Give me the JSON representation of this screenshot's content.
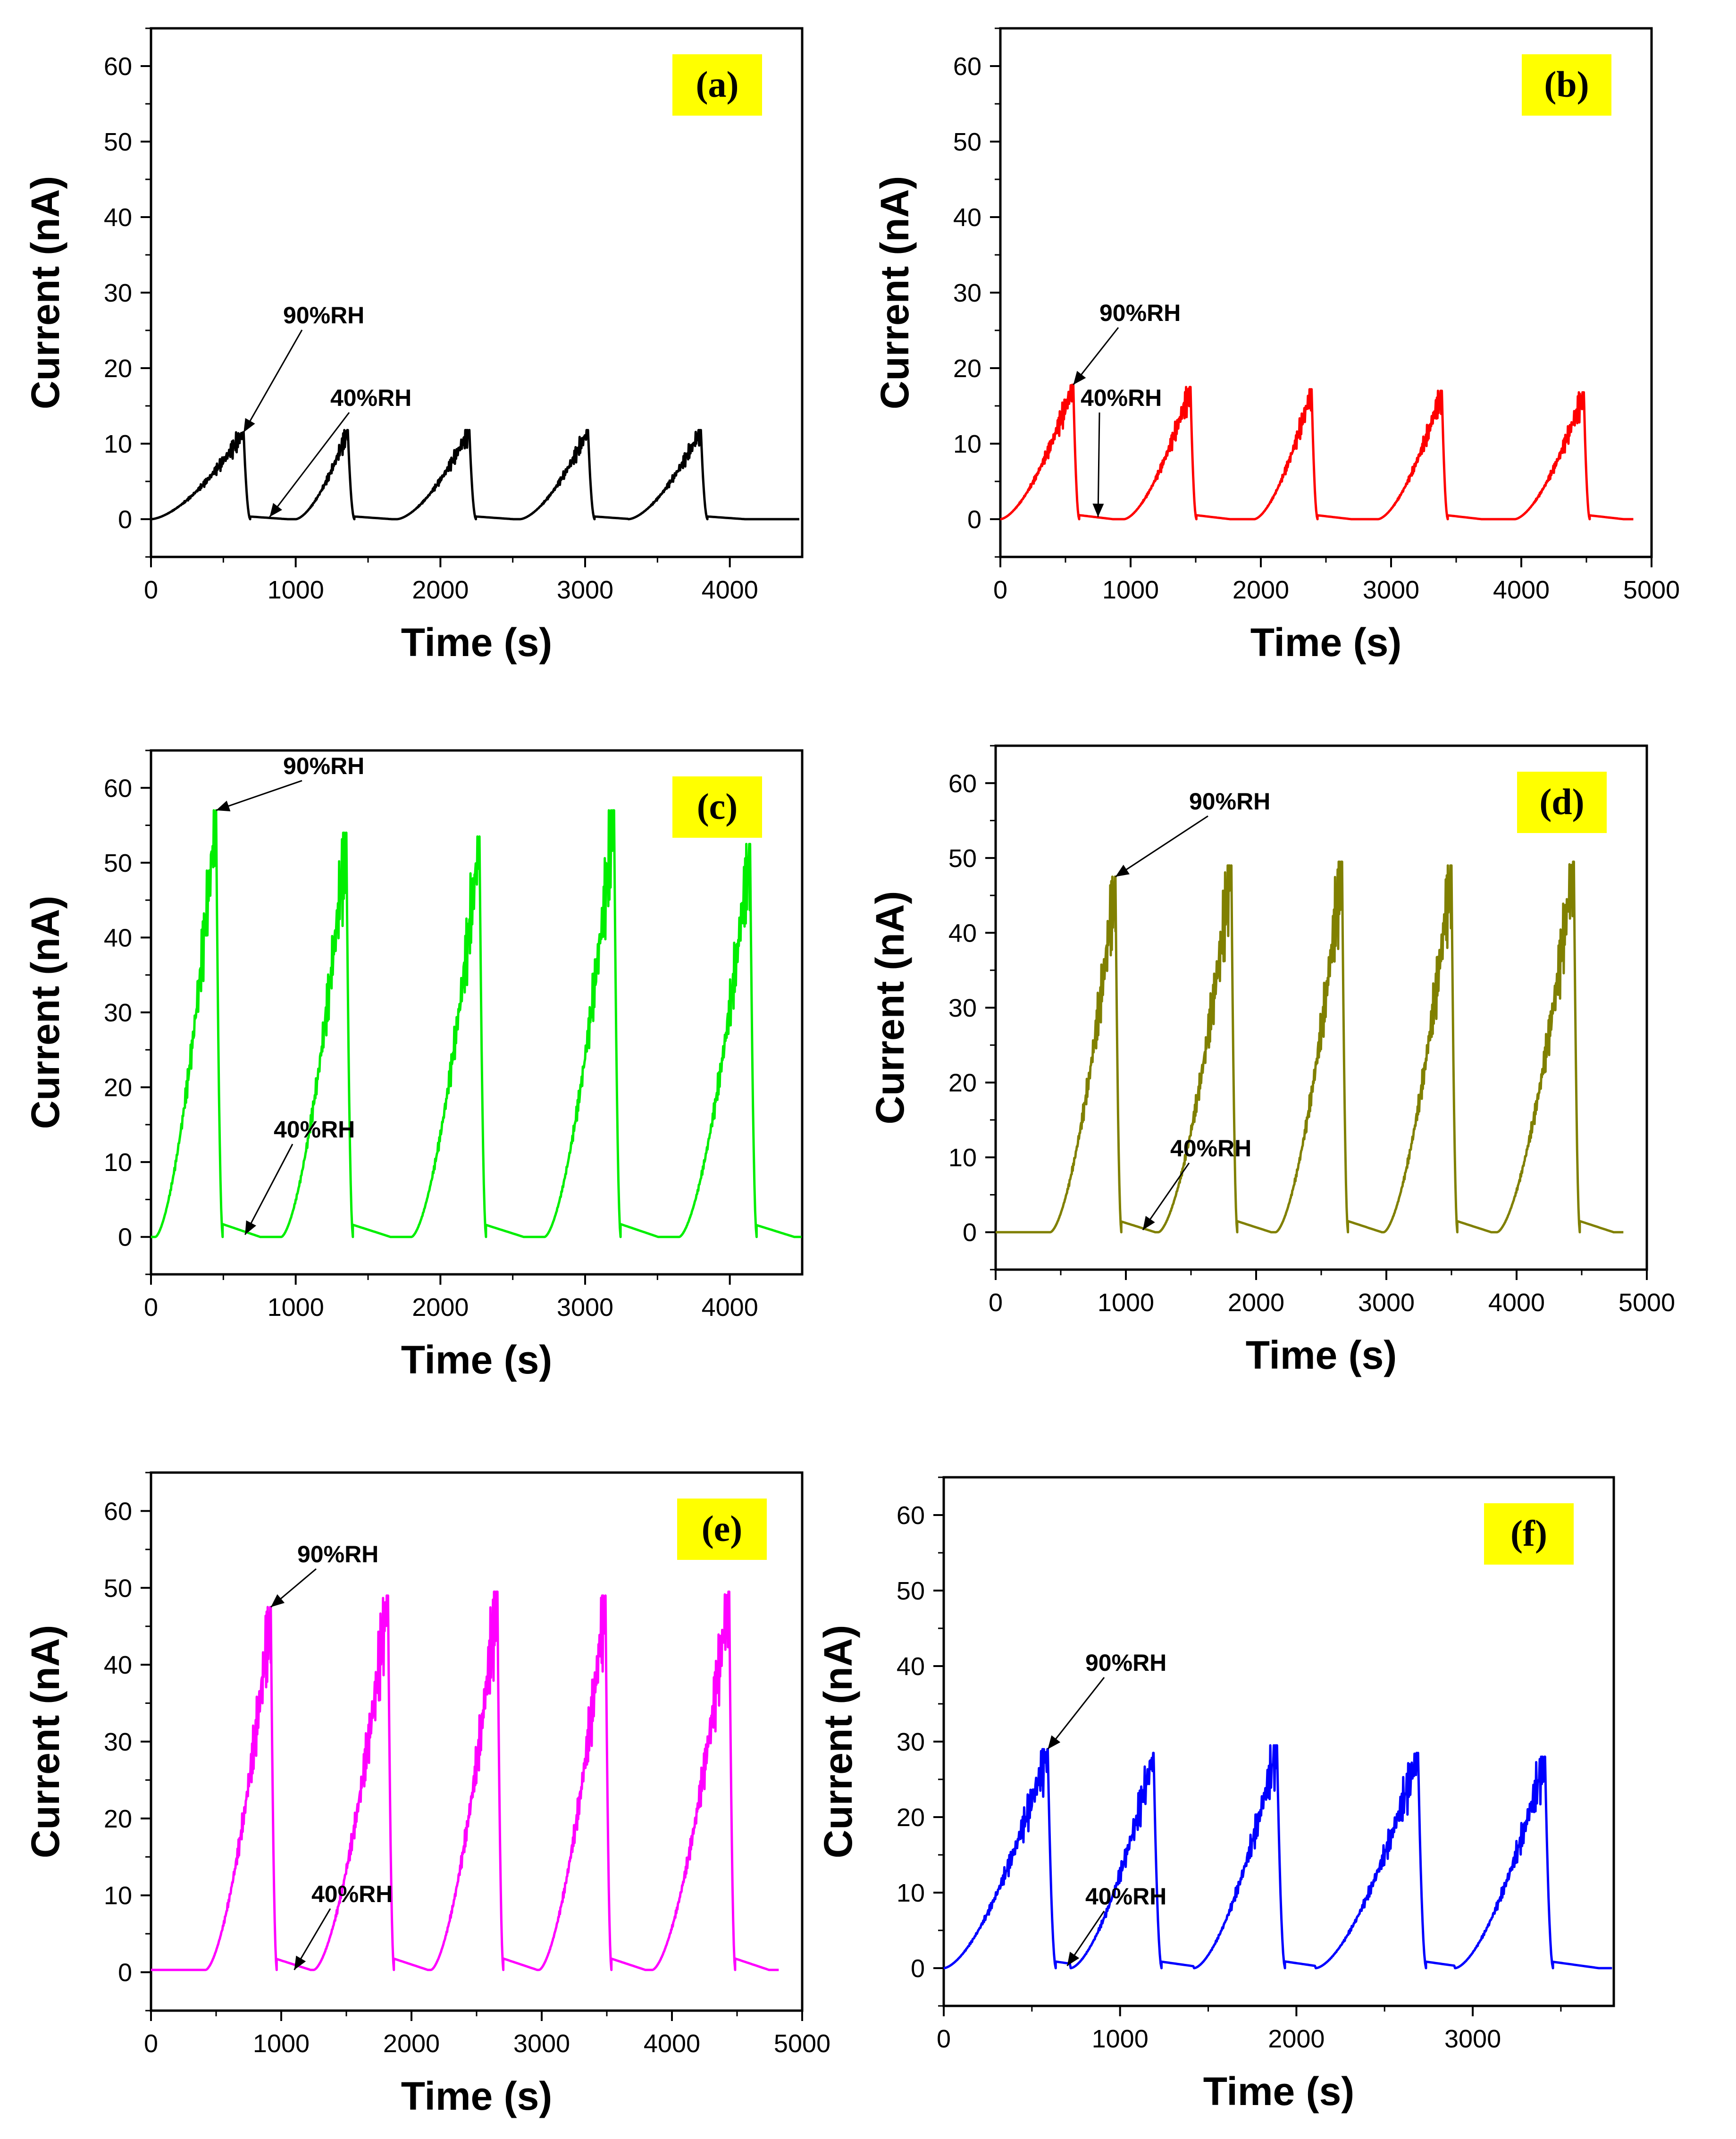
{
  "chart_data": [
    {
      "type": "line",
      "panel": "(a)",
      "color": "#000000",
      "xlabel": "Time (s)",
      "ylabel": "Current (nA)",
      "xlim": [
        0,
        4500
      ],
      "ylim": [
        -5,
        65
      ],
      "xticks": [
        0,
        1000,
        2000,
        3000,
        4000
      ],
      "xtick_labels": [
        "0",
        "1000",
        "2000",
        "3000",
        "4000"
      ],
      "yticks": [
        0,
        10,
        20,
        30,
        40,
        50,
        60
      ],
      "ytick_labels": [
        "0",
        "10",
        "20",
        "30",
        "40",
        "50",
        "60"
      ],
      "baseline": 0,
      "cycles": [
        {
          "start": 0,
          "peak_time": 640,
          "peak": 11.5
        },
        {
          "start": 1000,
          "peak_time": 1360,
          "peak": 11.8
        },
        {
          "start": 1700,
          "peak_time": 2200,
          "peak": 11.8
        },
        {
          "start": 2550,
          "peak_time": 3020,
          "peak": 11.8
        },
        {
          "start": 3300,
          "peak_time": 3800,
          "peak": 11.8
        }
      ],
      "annotations": [
        {
          "text": "90%RH",
          "x": 640,
          "y": 11.5
        },
        {
          "text": "40%RH",
          "x": 820,
          "y": 0.3
        }
      ]
    },
    {
      "type": "line",
      "panel": "(b)",
      "color": "#ff0000",
      "xlabel": "Time (s)",
      "ylabel": "Current (nA)",
      "xlim": [
        0,
        5000
      ],
      "ylim": [
        -5,
        65
      ],
      "xticks": [
        0,
        1000,
        2000,
        3000,
        4000,
        5000
      ],
      "xtick_labels": [
        "0",
        "1000",
        "2000",
        "3000",
        "4000",
        "5000"
      ],
      "yticks": [
        0,
        10,
        20,
        30,
        40,
        50,
        60
      ],
      "ytick_labels": [
        "0",
        "10",
        "20",
        "30",
        "40",
        "50",
        "60"
      ],
      "baseline": 0,
      "cycles": [
        {
          "start": 0,
          "peak_time": 560,
          "peak": 17.8
        },
        {
          "start": 950,
          "peak_time": 1460,
          "peak": 17.5
        },
        {
          "start": 1950,
          "peak_time": 2390,
          "peak": 17.2
        },
        {
          "start": 2900,
          "peak_time": 3390,
          "peak": 17.0
        },
        {
          "start": 3950,
          "peak_time": 4480,
          "peak": 16.8
        }
      ],
      "annotations": [
        {
          "text": "90%RH",
          "x": 560,
          "y": 17.8
        },
        {
          "text": "40%RH",
          "x": 750,
          "y": 0.3
        }
      ]
    },
    {
      "type": "line",
      "panel": "(c)",
      "color": "#00ee00",
      "xlabel": "Time (s)",
      "ylabel": "Current (nA)",
      "xlim": [
        0,
        4500
      ],
      "ylim": [
        -5,
        65
      ],
      "xticks": [
        0,
        1000,
        2000,
        3000,
        4000
      ],
      "xtick_labels": [
        "0",
        "1000",
        "2000",
        "3000",
        "4000"
      ],
      "yticks": [
        0,
        10,
        20,
        30,
        40,
        50,
        60
      ],
      "ytick_labels": [
        "0",
        "10",
        "20",
        "30",
        "40",
        "50",
        "60"
      ],
      "baseline": 0,
      "cycles": [
        {
          "start": 30,
          "peak_time": 450,
          "peak": 57.0
        },
        {
          "start": 900,
          "peak_time": 1350,
          "peak": 54.0
        },
        {
          "start": 1800,
          "peak_time": 2270,
          "peak": 53.5
        },
        {
          "start": 2720,
          "peak_time": 3200,
          "peak": 57.0
        },
        {
          "start": 3650,
          "peak_time": 4140,
          "peak": 52.5
        }
      ],
      "annotations": [
        {
          "text": "90%RH",
          "x": 450,
          "y": 57.0
        },
        {
          "text": "40%RH",
          "x": 650,
          "y": 0.3
        }
      ]
    },
    {
      "type": "line",
      "panel": "(d)",
      "color": "#808000",
      "xlabel": "Time (s)",
      "ylabel": "Current (nA)",
      "xlim": [
        0,
        5000
      ],
      "ylim": [
        -5,
        65
      ],
      "xticks": [
        0,
        1000,
        2000,
        3000,
        4000,
        5000
      ],
      "xtick_labels": [
        "0",
        "1000",
        "2000",
        "3000",
        "4000",
        "5000"
      ],
      "yticks": [
        0,
        10,
        20,
        30,
        40,
        50,
        60
      ],
      "ytick_labels": [
        "0",
        "10",
        "20",
        "30",
        "40",
        "50",
        "60"
      ],
      "baseline": 0,
      "cycles": [
        {
          "start": 420,
          "peak_time": 920,
          "peak": 47.5
        },
        {
          "start": 1250,
          "peak_time": 1810,
          "peak": 49.0
        },
        {
          "start": 2150,
          "peak_time": 2660,
          "peak": 49.5
        },
        {
          "start": 2980,
          "peak_time": 3500,
          "peak": 49.0
        },
        {
          "start": 3850,
          "peak_time": 4440,
          "peak": 49.5
        }
      ],
      "annotations": [
        {
          "text": "90%RH",
          "x": 920,
          "y": 47.5
        },
        {
          "text": "40%RH",
          "x": 1130,
          "y": 0.3
        }
      ]
    },
    {
      "type": "line",
      "panel": "(e)",
      "color": "#ff00ff",
      "xlabel": "Time (s)",
      "ylabel": "Current (nA)",
      "xlim": [
        0,
        5000
      ],
      "ylim": [
        -5,
        65
      ],
      "xticks": [
        0,
        1000,
        2000,
        3000,
        4000,
        5000
      ],
      "xtick_labels": [
        "0",
        "1000",
        "2000",
        "3000",
        "4000",
        "5000"
      ],
      "yticks": [
        0,
        10,
        20,
        30,
        40,
        50,
        60
      ],
      "ytick_labels": [
        "0",
        "10",
        "20",
        "30",
        "40",
        "50",
        "60"
      ],
      "baseline": 0.3,
      "cycles": [
        {
          "start": 420,
          "peak_time": 920,
          "peak": 47.5
        },
        {
          "start": 1250,
          "peak_time": 1820,
          "peak": 49.0
        },
        {
          "start": 2150,
          "peak_time": 2660,
          "peak": 49.5
        },
        {
          "start": 2980,
          "peak_time": 3490,
          "peak": 49.0
        },
        {
          "start": 3850,
          "peak_time": 4440,
          "peak": 49.5
        }
      ],
      "annotations": [
        {
          "text": "90%RH",
          "x": 920,
          "y": 47.5
        },
        {
          "text": "40%RH",
          "x": 1100,
          "y": 0.3
        }
      ]
    },
    {
      "type": "line",
      "panel": "(f)",
      "color": "#0000ff",
      "xlabel": "Time (s)",
      "ylabel": "Current (nA)",
      "xlim": [
        0,
        3800
      ],
      "ylim": [
        -5,
        65
      ],
      "xticks": [
        0,
        1000,
        2000,
        3000
      ],
      "xtick_labels": [
        "0",
        "1000",
        "2000",
        "3000"
      ],
      "yticks": [
        0,
        10,
        20,
        30,
        40,
        50,
        60
      ],
      "ytick_labels": [
        "0",
        "10",
        "20",
        "30",
        "40",
        "50",
        "60"
      ],
      "baseline": 0,
      "cycles": [
        {
          "start": 0,
          "peak_time": 590,
          "peak": 29.0
        },
        {
          "start": 720,
          "peak_time": 1190,
          "peak": 28.5
        },
        {
          "start": 1420,
          "peak_time": 1890,
          "peak": 29.5
        },
        {
          "start": 2110,
          "peak_time": 2690,
          "peak": 28.5
        },
        {
          "start": 2900,
          "peak_time": 3410,
          "peak": 28.0
        }
      ],
      "annotations": [
        {
          "text": "90%RH",
          "x": 590,
          "y": 29.0
        },
        {
          "text": "40%RH",
          "x": 700,
          "y": 0.3
        }
      ]
    }
  ]
}
